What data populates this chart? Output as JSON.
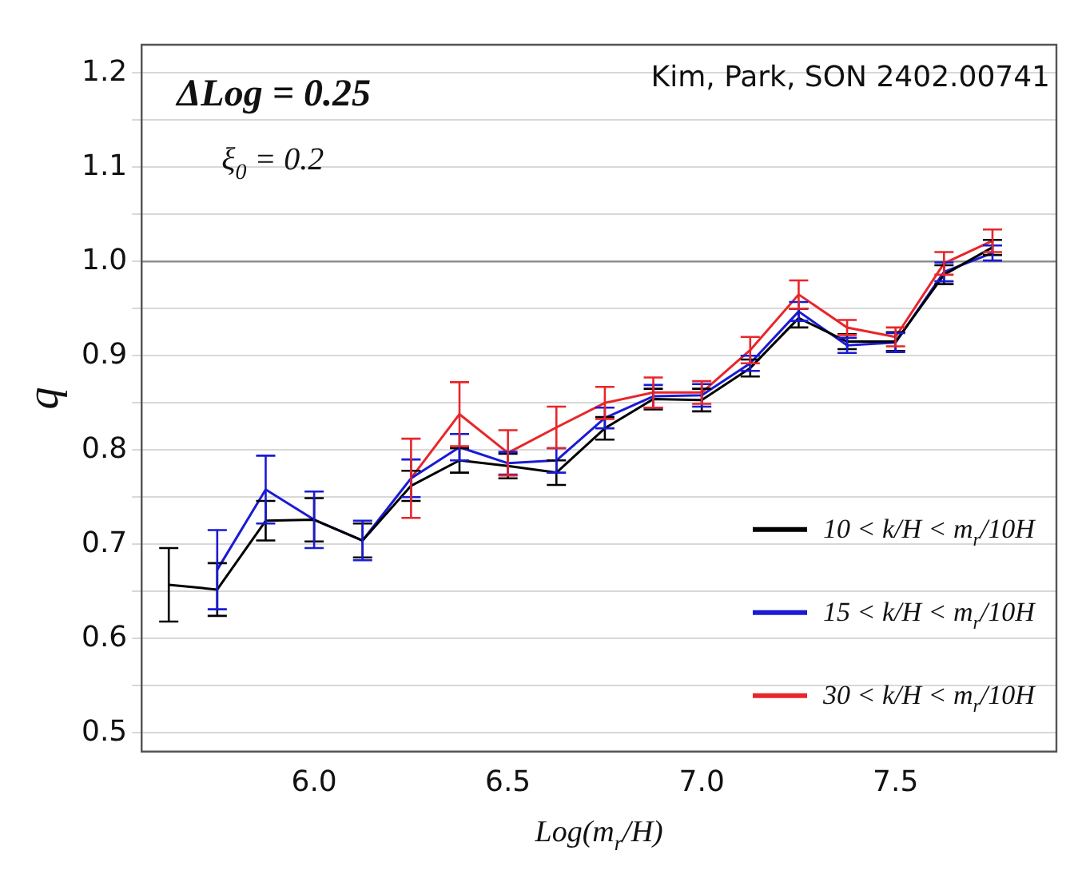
{
  "chart_data": {
    "type": "line",
    "xlabel": "Log(m$_{r}$/H)",
    "ylabel": "q",
    "x": [
      5.625,
      5.75,
      5.875,
      6.0,
      6.125,
      6.25,
      6.375,
      6.5,
      6.625,
      6.75,
      6.875,
      7.0,
      7.125,
      7.25,
      7.375,
      7.5,
      7.625,
      7.75
    ],
    "series": [
      {
        "name": "10 < k/H < m$_{r}$/10H",
        "color": "#000000",
        "values": [
          0.657,
          0.652,
          0.725,
          0.726,
          0.704,
          0.762,
          0.789,
          0.783,
          0.776,
          0.823,
          0.854,
          0.853,
          0.887,
          0.94,
          0.915,
          0.915,
          0.986,
          1.015
        ],
        "errors": [
          0.039,
          0.028,
          0.021,
          0.023,
          0.018,
          0.016,
          0.013,
          0.013,
          0.013,
          0.012,
          0.011,
          0.012,
          0.009,
          0.01,
          0.008,
          0.01,
          0.01,
          0.008
        ]
      },
      {
        "name": "15 < k/H < m$_{r}$/10H",
        "color": "#1a1ad6",
        "values": [
          null,
          0.673,
          0.758,
          0.726,
          0.704,
          0.77,
          0.803,
          0.786,
          0.789,
          0.834,
          0.857,
          0.858,
          0.892,
          0.947,
          0.911,
          0.914,
          0.989,
          1.009
        ],
        "errors": [
          null,
          0.042,
          0.036,
          0.03,
          0.021,
          0.02,
          0.014,
          0.012,
          0.013,
          0.011,
          0.012,
          0.012,
          0.008,
          0.01,
          0.008,
          0.01,
          0.01,
          0.008
        ]
      },
      {
        "name": "30 < k/H < m$_{r}$/10H",
        "color": "#e8262a",
        "values": [
          null,
          null,
          null,
          null,
          null,
          0.77,
          0.838,
          0.797,
          0.824,
          0.85,
          0.861,
          0.861,
          0.906,
          0.965,
          0.93,
          0.92,
          0.998,
          1.022
        ],
        "errors": [
          null,
          null,
          null,
          null,
          null,
          0.042,
          0.034,
          0.024,
          0.022,
          0.017,
          0.016,
          0.012,
          0.014,
          0.015,
          0.008,
          0.01,
          0.012,
          0.012
        ]
      }
    ],
    "xlim": [
      5.555,
      7.915
    ],
    "xticks": [
      {
        "value": 6,
        "label": "6.0"
      },
      {
        "value": 6.5,
        "label": "6.5"
      },
      {
        "value": 7,
        "label": "7.0"
      },
      {
        "value": 7.5,
        "label": "7.5"
      }
    ],
    "ylim": [
      0.48,
      1.23
    ],
    "yticks": [
      {
        "value": 0.5,
        "label": "0.5"
      },
      {
        "value": 0.55,
        "label": null
      },
      {
        "value": 0.6,
        "label": "0.6"
      },
      {
        "value": 0.65,
        "label": null
      },
      {
        "value": 0.7,
        "label": "0.7"
      },
      {
        "value": 0.75,
        "label": null
      },
      {
        "value": 0.8,
        "label": "0.8"
      },
      {
        "value": 0.85,
        "label": null
      },
      {
        "value": 0.9,
        "label": "0.9"
      },
      {
        "value": 0.95,
        "label": null
      },
      {
        "value": 1.0,
        "label": "1.0"
      },
      {
        "value": 1.05,
        "label": null
      },
      {
        "value": 1.1,
        "label": "1.1"
      },
      {
        "value": 1.15,
        "label": null
      },
      {
        "value": 1.2,
        "label": "1.2"
      }
    ],
    "ref_lines": [
      {
        "axis": "y",
        "value": 1.0,
        "label": null,
        "color": "#888888"
      }
    ],
    "grid": "y",
    "legend": "bottom right",
    "line_style": "solid",
    "annotations": [
      "ΔLog = 0.25",
      "ξ$_{0}$ = 0.2",
      "Kim, Park, SON 2402.00741"
    ]
  }
}
